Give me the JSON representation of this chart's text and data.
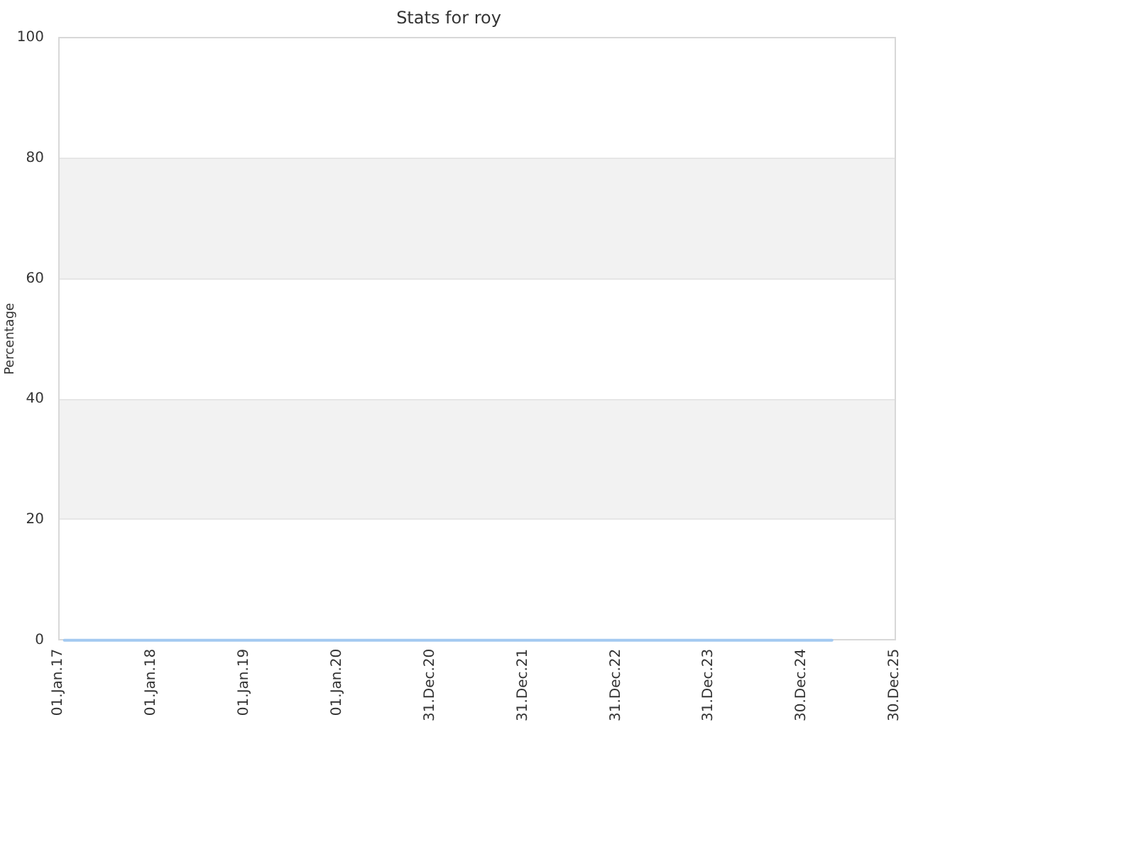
{
  "chart_data": {
    "type": "line",
    "title": "Stats for roy",
    "ylabel": "Percentage",
    "x": [
      "2017-01-25",
      "2025-04-28"
    ],
    "values": [
      0,
      0
    ],
    "color": "#a3c9f1",
    "xlim": [
      "2017-01-01",
      "2025-12-30"
    ],
    "xticks": [
      {
        "value": "2017-01-01",
        "label": "01.Jan.17"
      },
      {
        "value": "2018-01-01",
        "label": "01.Jan.18"
      },
      {
        "value": "2019-01-01",
        "label": "01.Jan.19"
      },
      {
        "value": "2020-01-01",
        "label": "01.Jan.20"
      },
      {
        "value": "2020-12-31",
        "label": "31.Dec.20"
      },
      {
        "value": "2021-12-31",
        "label": "31.Dec.21"
      },
      {
        "value": "2022-12-31",
        "label": "31.Dec.22"
      },
      {
        "value": "2023-12-31",
        "label": "31.Dec.23"
      },
      {
        "value": "2024-12-30",
        "label": "30.Dec.24"
      },
      {
        "value": "2025-12-30",
        "label": "30.Dec.25"
      }
    ],
    "ylim": [
      0,
      100
    ],
    "yticks": [
      0,
      20,
      40,
      60,
      80,
      100
    ],
    "grid": "y",
    "marker": "none",
    "bands": [
      {
        "axis": "y",
        "from": 20,
        "to": 40,
        "color": "#f2f2f2"
      },
      {
        "axis": "y",
        "from": 60,
        "to": 80,
        "color": "#f2f2f2"
      }
    ]
  }
}
